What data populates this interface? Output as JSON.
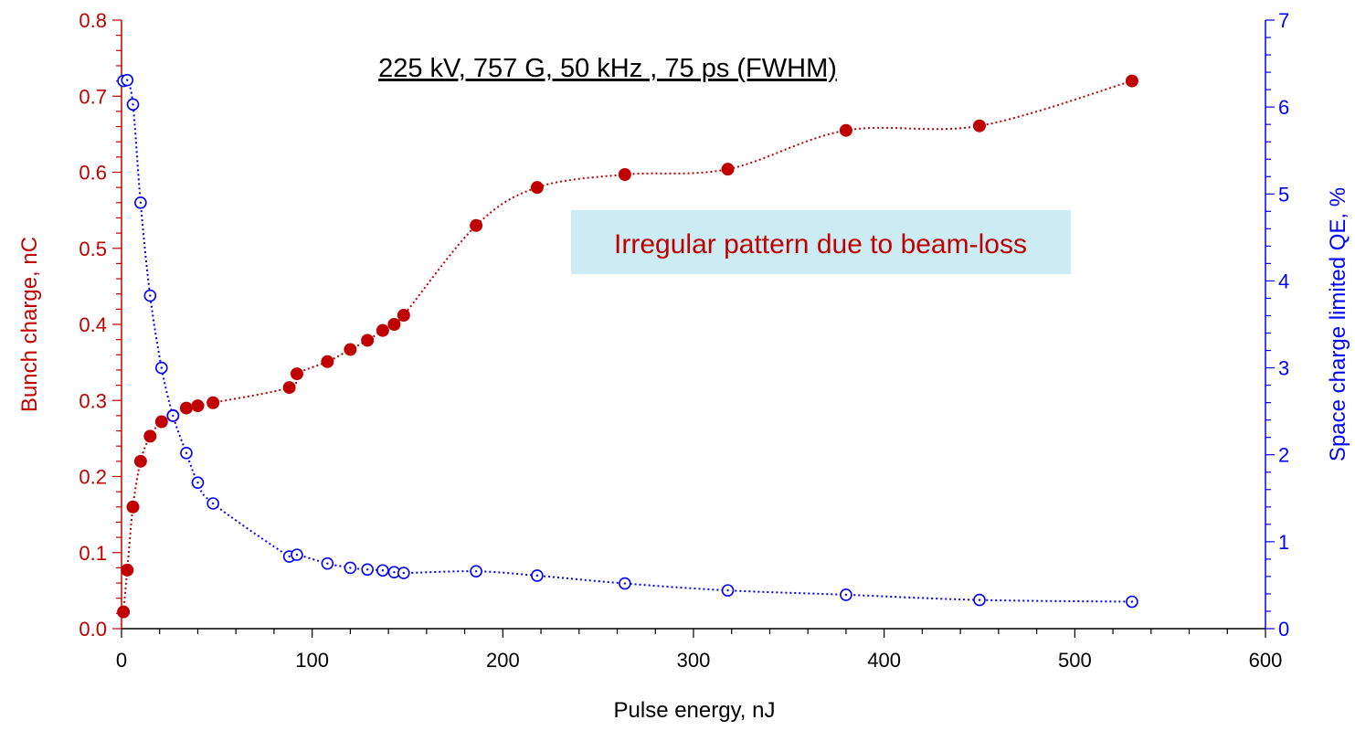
{
  "chart_data": {
    "type": "scatter",
    "title": "225 kV, 757 G, 50 kHz , 75 ps (FWHM)",
    "annotation": "Irregular pattern due to beam-loss",
    "xlabel": "Pulse energy, nJ",
    "ylabel_left": "Bunch charge, nC",
    "ylabel_right": "Space charge limited QE, %",
    "xlim": [
      0,
      600
    ],
    "ylim_left": [
      0,
      0.8
    ],
    "ylim_right": [
      0,
      7
    ],
    "x_ticks": [
      "0",
      "100",
      "200",
      "300",
      "400",
      "500",
      "600"
    ],
    "y_left_ticks": [
      "0.0",
      "0.1",
      "0.2",
      "0.3",
      "0.4",
      "0.5",
      "0.6",
      "0.7",
      "0.8"
    ],
    "y_right_ticks": [
      "0",
      "1",
      "2",
      "3",
      "4",
      "5",
      "6",
      "7"
    ],
    "grid": false,
    "colors": {
      "left": "#c00000",
      "right": "#0000ff",
      "annotation_bg": "#ccecf4"
    },
    "series": [
      {
        "axis": "left",
        "marker": "filled-circle",
        "x": [
          1,
          3,
          6,
          10,
          15,
          21,
          27,
          34,
          40,
          48,
          88,
          92,
          108,
          120,
          129,
          137,
          143,
          148,
          186,
          218,
          264,
          318,
          380,
          450,
          530
        ],
        "y": [
          0.022,
          0.077,
          0.16,
          0.22,
          0.253,
          0.272,
          0.28,
          0.29,
          0.293,
          0.297,
          0.317,
          0.335,
          0.351,
          0.367,
          0.379,
          0.392,
          0.4,
          0.412,
          0.53,
          0.58,
          0.597,
          0.604,
          0.655,
          0.661,
          0.72
        ]
      },
      {
        "axis": "right",
        "marker": "open-circle",
        "x": [
          1,
          3,
          6,
          10,
          15,
          21,
          27,
          34,
          40,
          48,
          88,
          92,
          108,
          120,
          129,
          137,
          143,
          148,
          186,
          218,
          264,
          318,
          380,
          450,
          530
        ],
        "y": [
          6.3,
          6.31,
          6.03,
          4.9,
          3.83,
          3.0,
          2.45,
          2.02,
          1.68,
          1.44,
          0.83,
          0.85,
          0.75,
          0.7,
          0.68,
          0.67,
          0.65,
          0.64,
          0.66,
          0.61,
          0.52,
          0.44,
          0.39,
          0.33,
          0.31
        ]
      }
    ]
  }
}
